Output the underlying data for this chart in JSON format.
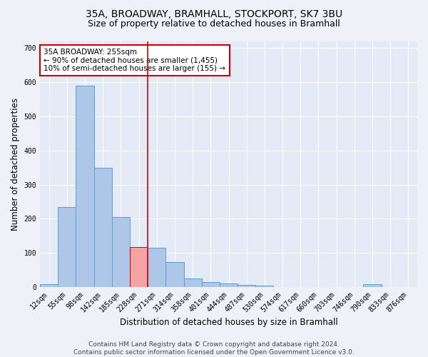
{
  "title": "35A, BROADWAY, BRAMHALL, STOCKPORT, SK7 3BU",
  "subtitle": "Size of property relative to detached houses in Bramhall",
  "xlabel": "Distribution of detached houses by size in Bramhall",
  "ylabel": "Number of detached properties",
  "footer_line1": "Contains HM Land Registry data © Crown copyright and database right 2024.",
  "footer_line2": "Contains public sector information licensed under the Open Government Licence v3.0.",
  "bar_labels": [
    "12sqm",
    "55sqm",
    "98sqm",
    "142sqm",
    "185sqm",
    "228sqm",
    "271sqm",
    "314sqm",
    "358sqm",
    "401sqm",
    "444sqm",
    "487sqm",
    "530sqm",
    "574sqm",
    "617sqm",
    "660sqm",
    "703sqm",
    "746sqm",
    "790sqm",
    "833sqm",
    "876sqm"
  ],
  "bar_values": [
    8,
    235,
    590,
    350,
    205,
    117,
    115,
    73,
    25,
    14,
    10,
    6,
    5,
    0,
    0,
    0,
    0,
    0,
    8,
    0,
    0
  ],
  "bar_color": "#aec6e8",
  "bar_edge_color": "#5a9fd4",
  "highlight_bar_index": 5,
  "highlight_bar_color": "#f4a4a4",
  "highlight_bar_edge_color": "#cc0000",
  "vline_x": 5.5,
  "vline_color": "#cc0000",
  "annotation_text": "35A BROADWAY: 255sqm\n← 90% of detached houses are smaller (1,455)\n10% of semi-detached houses are larger (155) →",
  "annotation_box_color": "#ffffff",
  "annotation_box_edge_color": "#cc0000",
  "ylim": [
    0,
    720
  ],
  "yticks": [
    0,
    100,
    200,
    300,
    400,
    500,
    600,
    700
  ],
  "background_color": "#eef2f8",
  "plot_background_color": "#e4eaf6",
  "grid_color": "#ffffff",
  "title_fontsize": 10,
  "subtitle_fontsize": 9,
  "axis_label_fontsize": 8.5,
  "tick_fontsize": 7,
  "footer_fontsize": 6.5,
  "annotation_fontsize": 7.5
}
